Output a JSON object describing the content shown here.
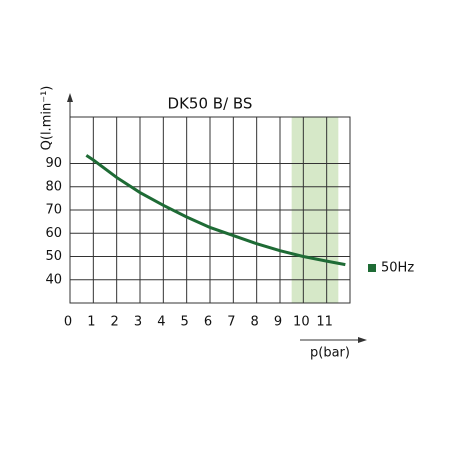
{
  "chart_data": {
    "type": "line",
    "title": "DK50 B/ BS",
    "x_label": "p(bar)",
    "y_label": "Q(l.min⁻¹)",
    "x": [
      0.7,
      1,
      2,
      3,
      4,
      5,
      6,
      7,
      8,
      9,
      10,
      11,
      11.8
    ],
    "series": [
      {
        "name": "50Hz",
        "color": "#1e6b35",
        "values": [
          93.5,
          91.5,
          84,
          77.5,
          72,
          67,
          62.5,
          59,
          55.5,
          52.5,
          50,
          48,
          46.5
        ]
      }
    ],
    "highlight_x": [
      9.5,
      11.5
    ],
    "highlight_color": "#d6e8c8",
    "xlim": [
      0,
      12
    ],
    "xticks": [
      0,
      1,
      2,
      3,
      4,
      5,
      6,
      7,
      8,
      9,
      10,
      11
    ],
    "ylim": [
      30,
      110
    ],
    "yticks": [
      40,
      50,
      60,
      70,
      80,
      90
    ],
    "grid": true,
    "legend": "right"
  }
}
